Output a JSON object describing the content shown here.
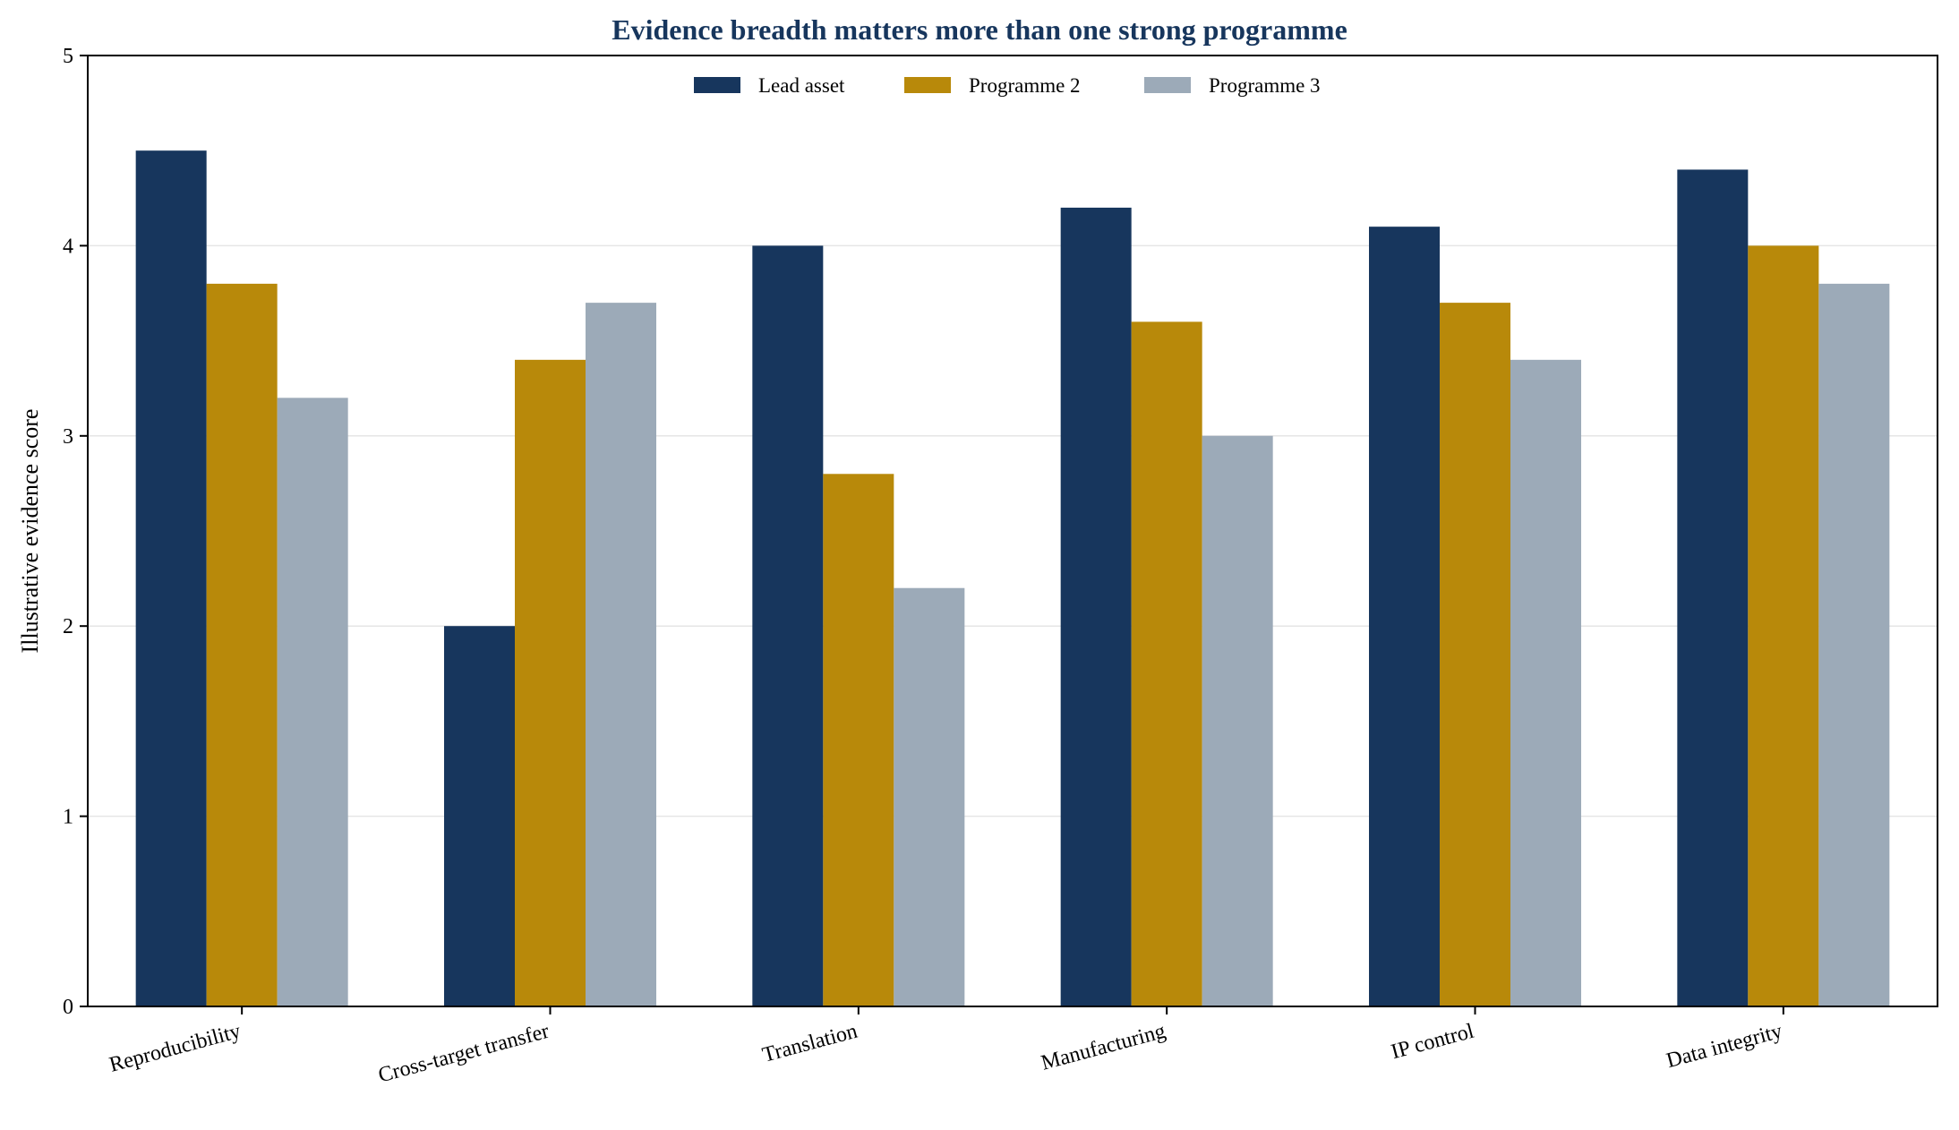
{
  "chart_data": {
    "type": "bar",
    "title": "Evidence breadth matters more than one strong programme",
    "xlabel": "",
    "ylabel": "Illustrative evidence score",
    "ylim": [
      0,
      5
    ],
    "yticks": [
      "0",
      "1",
      "2",
      "3",
      "4",
      "5"
    ],
    "categories": [
      "Reproducibility",
      "Cross-target transfer",
      "Translation",
      "Manufacturing",
      "IP control",
      "Data integrity"
    ],
    "series": [
      {
        "name": "Lead asset",
        "color": "#17365d",
        "values": [
          4.5,
          2.0,
          4.0,
          4.2,
          4.1,
          4.4
        ]
      },
      {
        "name": "Programme 2",
        "color": "#b8890a",
        "values": [
          3.8,
          3.4,
          2.8,
          3.6,
          3.7,
          4.0
        ]
      },
      {
        "name": "Programme 3",
        "color": "#9caab8",
        "values": [
          3.2,
          3.7,
          2.2,
          3.0,
          3.4,
          3.8
        ]
      }
    ],
    "grid": "horizontal",
    "legend_position": "top-center",
    "title_color": "#17365d"
  }
}
